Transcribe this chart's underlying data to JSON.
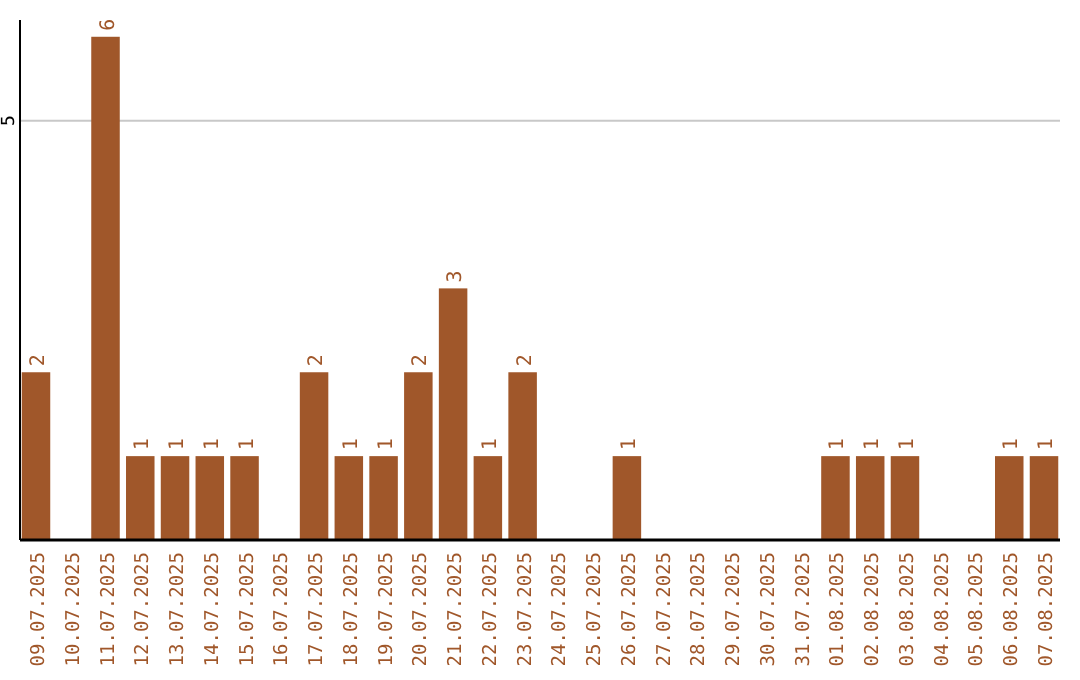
{
  "chart_data": {
    "type": "bar",
    "categories": [
      "09.07.2025",
      "10.07.2025",
      "11.07.2025",
      "12.07.2025",
      "13.07.2025",
      "14.07.2025",
      "15.07.2025",
      "16.07.2025",
      "17.07.2025",
      "18.07.2025",
      "19.07.2025",
      "20.07.2025",
      "21.07.2025",
      "22.07.2025",
      "23.07.2025",
      "24.07.2025",
      "25.07.2025",
      "26.07.2025",
      "27.07.2025",
      "28.07.2025",
      "29.07.2025",
      "30.07.2025",
      "31.07.2025",
      "01.08.2025",
      "02.08.2025",
      "03.08.2025",
      "04.08.2025",
      "05.08.2025",
      "06.08.2025",
      "07.08.2025"
    ],
    "values": [
      2,
      0,
      6,
      1,
      1,
      1,
      1,
      0,
      2,
      1,
      1,
      2,
      3,
      1,
      2,
      0,
      0,
      1,
      0,
      0,
      0,
      0,
      0,
      1,
      1,
      1,
      0,
      0,
      1,
      1
    ],
    "value_labels": [
      "2",
      null,
      "6",
      "1",
      "1",
      "1",
      "1",
      null,
      "2",
      "1",
      "1",
      "2",
      "3",
      "1",
      "2",
      null,
      null,
      "1",
      null,
      null,
      null,
      null,
      null,
      "1",
      "1",
      "1",
      null,
      null,
      "1",
      "1"
    ],
    "color": "#a0572a",
    "ylim": [
      0,
      6.2
    ],
    "yticks": [
      5
    ],
    "grid": "y"
  }
}
